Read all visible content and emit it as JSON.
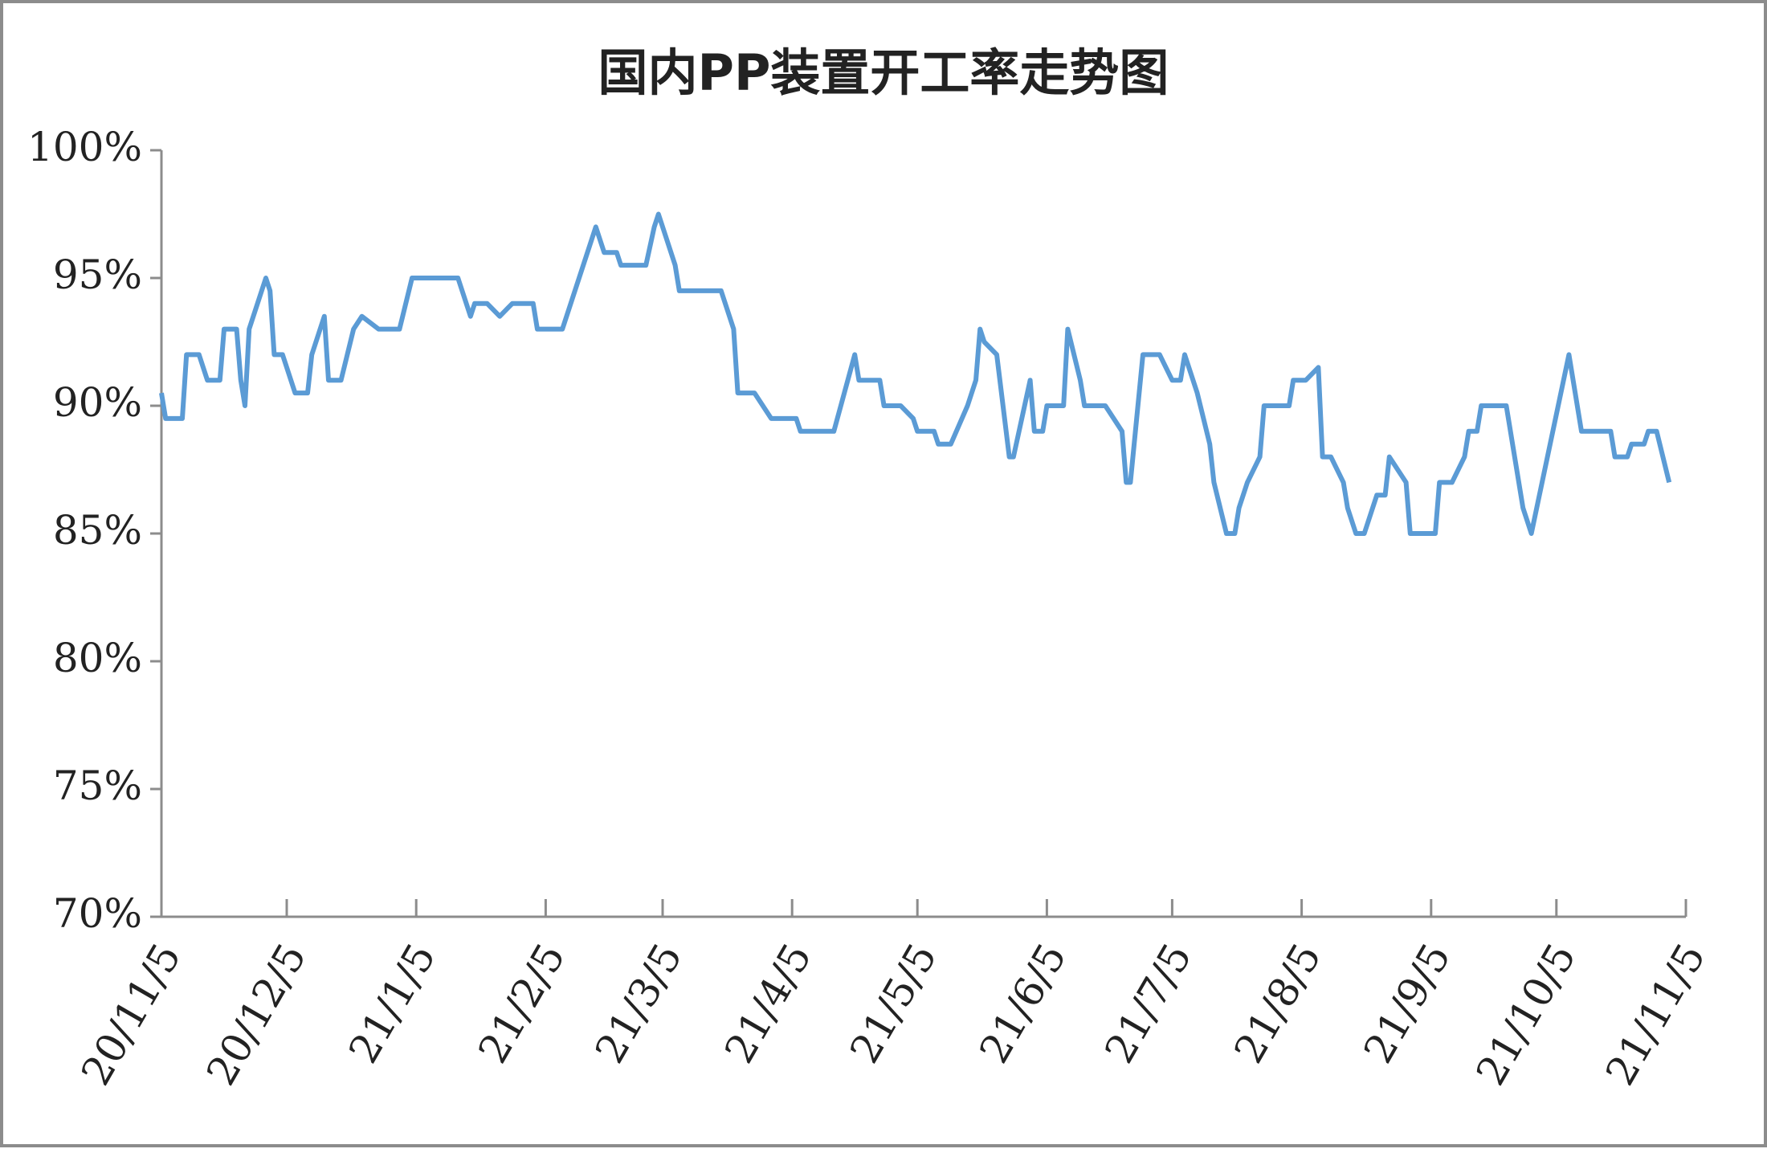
{
  "chart_data": {
    "type": "line",
    "title": "国内PP装置开工率走势图",
    "x": [
      "2020-11-05",
      "2020-11-06",
      "2020-11-10",
      "2020-11-11",
      "2020-11-14",
      "2020-11-16",
      "2020-11-19",
      "2020-11-20",
      "2020-11-23",
      "2020-11-24",
      "2020-11-25",
      "2020-11-26",
      "2020-11-30",
      "2020-12-01",
      "2020-12-02",
      "2020-12-04",
      "2020-12-07",
      "2020-12-10",
      "2020-12-11",
      "2020-12-14",
      "2020-12-15",
      "2020-12-18",
      "2020-12-21",
      "2020-12-23",
      "2020-12-27",
      "2021-01-01",
      "2021-01-04",
      "2021-01-15",
      "2021-01-18",
      "2021-01-19",
      "2021-01-22",
      "2021-01-25",
      "2021-01-28",
      "2021-02-02",
      "2021-02-03",
      "2021-02-09",
      "2021-02-10",
      "2021-02-17",
      "2021-02-19",
      "2021-02-22",
      "2021-02-23",
      "2021-03-01",
      "2021-03-03",
      "2021-03-04",
      "2021-03-08",
      "2021-03-09",
      "2021-03-19",
      "2021-03-22",
      "2021-03-23",
      "2021-03-27",
      "2021-03-31",
      "2021-04-06",
      "2021-04-07",
      "2021-04-15",
      "2021-04-20",
      "2021-04-21",
      "2021-04-26",
      "2021-04-27",
      "2021-05-01",
      "2021-05-04",
      "2021-05-05",
      "2021-05-09",
      "2021-05-10",
      "2021-05-13",
      "2021-05-17",
      "2021-05-19",
      "2021-05-20",
      "2021-05-21",
      "2021-05-24",
      "2021-05-27",
      "2021-05-28",
      "2021-06-01",
      "2021-06-02",
      "2021-06-04",
      "2021-06-05",
      "2021-06-09",
      "2021-06-10",
      "2021-06-13",
      "2021-06-14",
      "2021-06-19",
      "2021-06-21",
      "2021-06-23",
      "2021-06-24",
      "2021-06-25",
      "2021-06-28",
      "2021-07-02",
      "2021-07-05",
      "2021-07-07",
      "2021-07-08",
      "2021-07-11",
      "2021-07-14",
      "2021-07-15",
      "2021-07-18",
      "2021-07-20",
      "2021-07-21",
      "2021-07-23",
      "2021-07-26",
      "2021-07-27",
      "2021-08-02",
      "2021-08-03",
      "2021-08-06",
      "2021-08-09",
      "2021-08-10",
      "2021-08-12",
      "2021-08-15",
      "2021-08-16",
      "2021-08-18",
      "2021-08-20",
      "2021-08-23",
      "2021-08-25",
      "2021-08-26",
      "2021-08-30",
      "2021-08-31",
      "2021-09-06",
      "2021-09-07",
      "2021-09-10",
      "2021-09-13",
      "2021-09-14",
      "2021-09-16",
      "2021-09-17",
      "2021-09-23",
      "2021-09-27",
      "2021-09-29",
      "2021-10-08",
      "2021-10-11",
      "2021-10-18",
      "2021-10-19",
      "2021-10-22",
      "2021-10-23",
      "2021-10-26",
      "2021-10-27",
      "2021-10-29",
      "2021-11-01"
    ],
    "values": [
      90.5,
      89.5,
      89.5,
      92,
      92,
      91,
      91,
      93,
      93,
      91,
      90,
      93,
      95,
      94.5,
      92,
      92,
      90.5,
      90.5,
      92,
      93.5,
      91,
      91,
      93,
      93.5,
      93,
      93,
      95,
      95,
      93.5,
      94,
      94,
      93.5,
      94,
      94,
      93,
      93,
      93.5,
      97,
      96,
      96,
      95.5,
      95.5,
      97,
      97.5,
      95.5,
      94.5,
      94.5,
      93,
      90.5,
      90.5,
      89.5,
      89.5,
      89,
      89,
      92,
      91,
      91,
      90,
      90,
      89.5,
      89,
      89,
      88.5,
      88.5,
      90,
      91,
      93,
      92.5,
      92,
      88,
      88,
      91,
      89,
      89,
      90,
      90,
      93,
      91,
      90,
      90,
      89.5,
      89,
      87,
      87,
      92,
      92,
      91,
      91,
      92,
      90.5,
      88.5,
      87,
      85,
      85,
      86,
      87,
      88,
      90,
      90,
      91,
      91,
      91.5,
      88,
      88,
      87,
      86,
      85,
      85,
      86.5,
      86.5,
      88,
      87,
      85,
      85,
      87,
      87,
      88,
      89,
      89,
      90,
      90,
      86,
      85,
      92,
      89,
      89,
      88,
      88,
      88.5,
      88.5,
      89,
      89,
      87
    ],
    "color": "#5b9bd5",
    "xlim": [
      "2020-11-05",
      "2021-11-05"
    ],
    "xticks": [
      {
        "value": "2020-11-05",
        "label": "20/11/5"
      },
      {
        "value": "2020-12-05",
        "label": "20/12/5"
      },
      {
        "value": "2021-01-05",
        "label": "21/1/5"
      },
      {
        "value": "2021-02-05",
        "label": "21/2/5"
      },
      {
        "value": "2021-03-05",
        "label": "21/3/5"
      },
      {
        "value": "2021-04-05",
        "label": "21/4/5"
      },
      {
        "value": "2021-05-05",
        "label": "21/5/5"
      },
      {
        "value": "2021-06-05",
        "label": "21/6/5"
      },
      {
        "value": "2021-07-05",
        "label": "21/7/5"
      },
      {
        "value": "2021-08-05",
        "label": "21/8/5"
      },
      {
        "value": "2021-09-05",
        "label": "21/9/5"
      },
      {
        "value": "2021-10-05",
        "label": "21/10/5"
      },
      {
        "value": "2021-11-05",
        "label": "21/11/5"
      }
    ],
    "ylim": [
      70,
      100
    ],
    "yticks": [
      {
        "value": 70,
        "label": "70%"
      },
      {
        "value": 75,
        "label": "75%"
      },
      {
        "value": 80,
        "label": "80%"
      },
      {
        "value": 85,
        "label": "85%"
      },
      {
        "value": 90,
        "label": "90%"
      },
      {
        "value": 95,
        "label": "95%"
      },
      {
        "value": 100,
        "label": "100%"
      }
    ]
  }
}
